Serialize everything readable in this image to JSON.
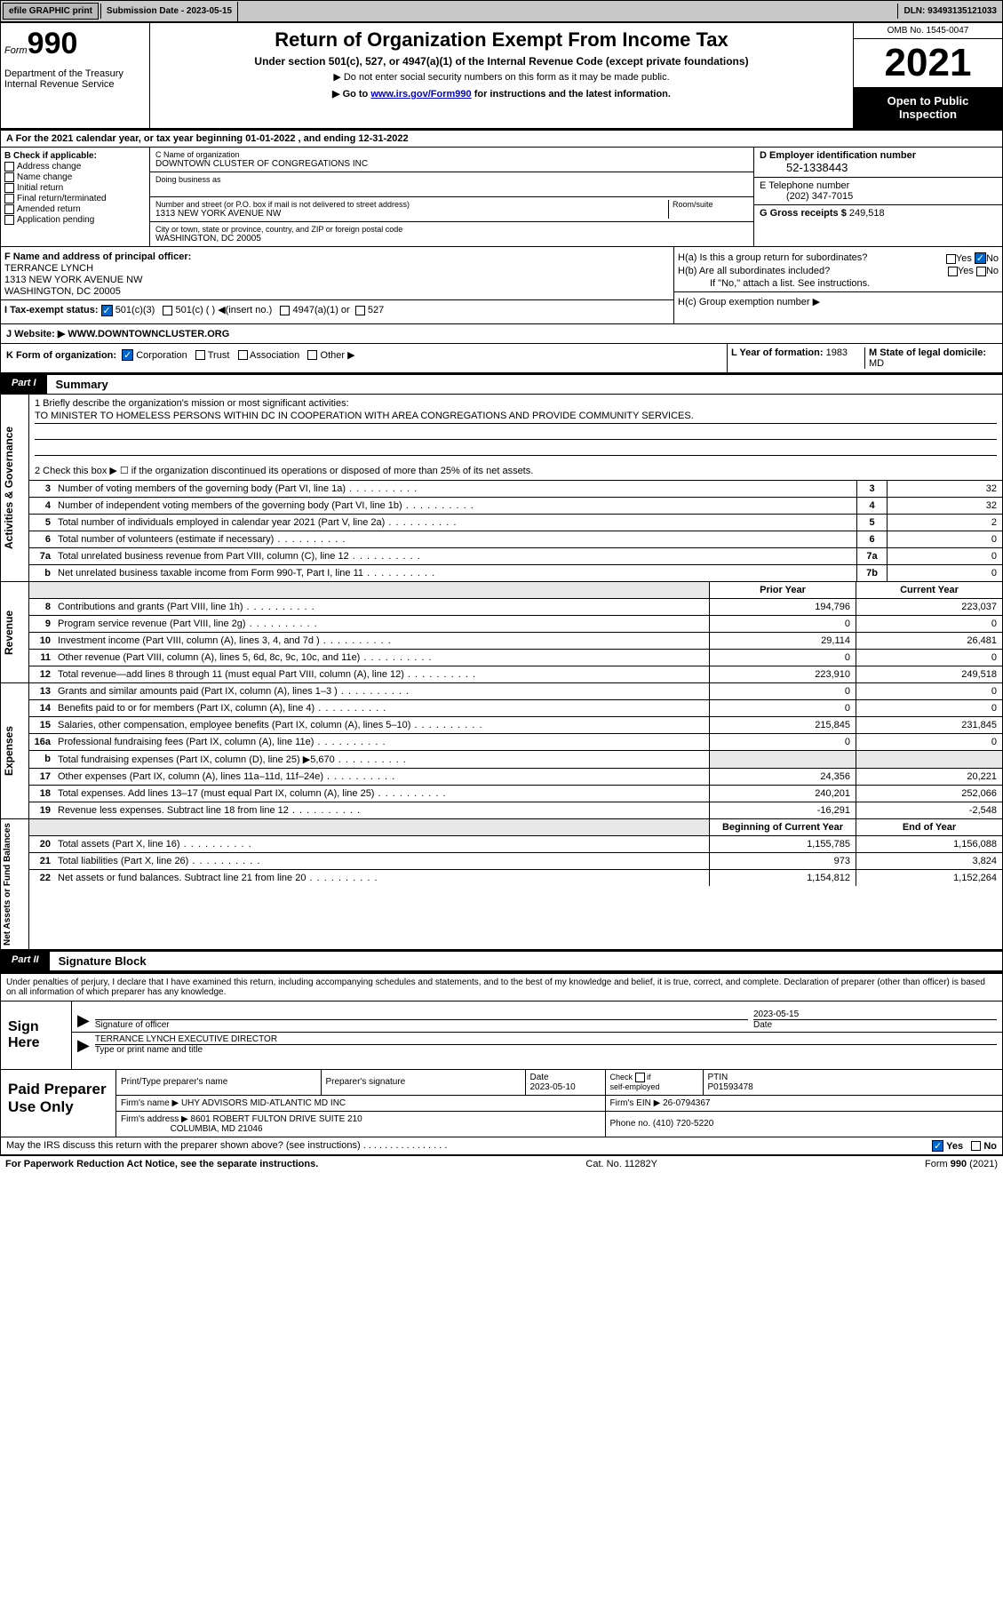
{
  "topbar": {
    "efile": "efile GRAPHIC print",
    "submission": "Submission Date - 2023-05-15",
    "dln": "DLN: 93493135121033"
  },
  "header": {
    "form_word": "Form",
    "form_num": "990",
    "dept": "Department of the Treasury",
    "irs": "Internal Revenue Service",
    "title": "Return of Organization Exempt From Income Tax",
    "sub": "Under section 501(c), 527, or 4947(a)(1) of the Internal Revenue Code (except private foundations)",
    "note1": "▶ Do not enter social security numbers on this form as it may be made public.",
    "note2_a": "▶ Go to ",
    "note2_link": "www.irs.gov/Form990",
    "note2_b": " for instructions and the latest information.",
    "omb": "OMB No. 1545-0047",
    "year": "2021",
    "open": "Open to Public Inspection"
  },
  "period": "A For the 2021 calendar year, or tax year beginning 01-01-2022   , and ending 12-31-2022",
  "colB": {
    "head": "B Check if applicable:",
    "c1": "Address change",
    "c2": "Name change",
    "c3": "Initial return",
    "c4": "Final return/terminated",
    "c5": "Amended return",
    "c6": "Application pending"
  },
  "colC": {
    "name_lbl": "C Name of organization",
    "name": "DOWNTOWN CLUSTER OF CONGREGATIONS INC",
    "dba_lbl": "Doing business as",
    "addr_lbl": "Number and street (or P.O. box if mail is not delivered to street address)",
    "room_lbl": "Room/suite",
    "addr": "1313 NEW YORK AVENUE NW",
    "city_lbl": "City or town, state or province, country, and ZIP or foreign postal code",
    "city": "WASHINGTON, DC  20005"
  },
  "colDE": {
    "d_lbl": "D Employer identification number",
    "ein": "52-1338443",
    "e_lbl": "E Telephone number",
    "phone": "(202) 347-7015",
    "g_lbl": "G Gross receipts $",
    "g_val": "249,518"
  },
  "rowF": {
    "f_lbl": "F Name and address of principal officer:",
    "f_name": "TERRANCE LYNCH",
    "f_addr1": "1313 NEW YORK AVENUE NW",
    "f_addr2": "WASHINGTON, DC  20005"
  },
  "rowH": {
    "ha": "H(a)  Is this a group return for subordinates?",
    "hb": "H(b)  Are all subordinates included?",
    "hb2": "If \"No,\" attach a list. See instructions.",
    "hc": "H(c)  Group exemption number ▶",
    "yes": "Yes",
    "no": "No"
  },
  "rowI": {
    "lbl": "I   Tax-exempt status:",
    "c1": "501(c)(3)",
    "c2": "501(c) (  ) ◀(insert no.)",
    "c3": "4947(a)(1) or",
    "c4": "527"
  },
  "rowJ": {
    "lbl": "J   Website: ▶",
    "val": "WWW.DOWNTOWNCLUSTER.ORG"
  },
  "rowK": {
    "lbl": "K Form of organization:",
    "c1": "Corporation",
    "c2": "Trust",
    "c3": "Association",
    "c4": "Other ▶"
  },
  "rowL": {
    "lbl": "L Year of formation:",
    "val": "1983"
  },
  "rowM": {
    "lbl": "M State of legal domicile:",
    "val": "MD"
  },
  "partI": {
    "lbl": "Part I",
    "title": "Summary"
  },
  "mission": {
    "q": "1   Briefly describe the organization's mission or most significant activities:",
    "text": "TO MINISTER TO HOMELESS PERSONS WITHIN DC IN COOPERATION WITH AREA CONGREGATIONS AND PROVIDE COMMUNITY SERVICES.",
    "q2": "2   Check this box ▶ ☐  if the organization discontinued its operations or disposed of more than 25% of its net assets."
  },
  "gov_rows": [
    {
      "n": "3",
      "d": "Number of voting members of the governing body (Part VI, line 1a)",
      "box": "3",
      "v": "32"
    },
    {
      "n": "4",
      "d": "Number of independent voting members of the governing body (Part VI, line 1b)",
      "box": "4",
      "v": "32"
    },
    {
      "n": "5",
      "d": "Total number of individuals employed in calendar year 2021 (Part V, line 2a)",
      "box": "5",
      "v": "2"
    },
    {
      "n": "6",
      "d": "Total number of volunteers (estimate if necessary)",
      "box": "6",
      "v": "0"
    },
    {
      "n": "7a",
      "d": "Total unrelated business revenue from Part VIII, column (C), line 12",
      "box": "7a",
      "v": "0"
    },
    {
      "n": "b",
      "d": "Net unrelated business taxable income from Form 990-T, Part I, line 11",
      "box": "7b",
      "v": "0"
    }
  ],
  "two_col": {
    "h1": "Prior Year",
    "h2": "Current Year"
  },
  "rev_rows": [
    {
      "n": "8",
      "d": "Contributions and grants (Part VIII, line 1h)",
      "v1": "194,796",
      "v2": "223,037"
    },
    {
      "n": "9",
      "d": "Program service revenue (Part VIII, line 2g)",
      "v1": "0",
      "v2": "0"
    },
    {
      "n": "10",
      "d": "Investment income (Part VIII, column (A), lines 3, 4, and 7d )",
      "v1": "29,114",
      "v2": "26,481"
    },
    {
      "n": "11",
      "d": "Other revenue (Part VIII, column (A), lines 5, 6d, 8c, 9c, 10c, and 11e)",
      "v1": "0",
      "v2": "0"
    },
    {
      "n": "12",
      "d": "Total revenue—add lines 8 through 11 (must equal Part VIII, column (A), line 12)",
      "v1": "223,910",
      "v2": "249,518"
    }
  ],
  "exp_rows": [
    {
      "n": "13",
      "d": "Grants and similar amounts paid (Part IX, column (A), lines 1–3 )",
      "v1": "0",
      "v2": "0"
    },
    {
      "n": "14",
      "d": "Benefits paid to or for members (Part IX, column (A), line 4)",
      "v1": "0",
      "v2": "0"
    },
    {
      "n": "15",
      "d": "Salaries, other compensation, employee benefits (Part IX, column (A), lines 5–10)",
      "v1": "215,845",
      "v2": "231,845"
    },
    {
      "n": "16a",
      "d": "Professional fundraising fees (Part IX, column (A), line 11e)",
      "v1": "0",
      "v2": "0"
    },
    {
      "n": "b",
      "d": "Total fundraising expenses (Part IX, column (D), line 25) ▶5,670",
      "v1": "",
      "v2": "",
      "gray": true
    },
    {
      "n": "17",
      "d": "Other expenses (Part IX, column (A), lines 11a–11d, 11f–24e)",
      "v1": "24,356",
      "v2": "20,221"
    },
    {
      "n": "18",
      "d": "Total expenses. Add lines 13–17 (must equal Part IX, column (A), line 25)",
      "v1": "240,201",
      "v2": "252,066"
    },
    {
      "n": "19",
      "d": "Revenue less expenses. Subtract line 18 from line 12",
      "v1": "-16,291",
      "v2": "-2,548"
    }
  ],
  "na_hdr": {
    "h1": "Beginning of Current Year",
    "h2": "End of Year"
  },
  "na_rows": [
    {
      "n": "20",
      "d": "Total assets (Part X, line 16)",
      "v1": "1,155,785",
      "v2": "1,156,088"
    },
    {
      "n": "21",
      "d": "Total liabilities (Part X, line 26)",
      "v1": "973",
      "v2": "3,824"
    },
    {
      "n": "22",
      "d": "Net assets or fund balances. Subtract line 21 from line 20",
      "v1": "1,154,812",
      "v2": "1,152,264"
    }
  ],
  "vtabs": {
    "gov": "Activities & Governance",
    "rev": "Revenue",
    "exp": "Expenses",
    "na": "Net Assets or Fund Balances"
  },
  "partII": {
    "lbl": "Part II",
    "title": "Signature Block"
  },
  "decl": "Under penalties of perjury, I declare that I have examined this return, including accompanying schedules and statements, and to the best of my knowledge and belief, it is true, correct, and complete. Declaration of preparer (other than officer) is based on all information of which preparer has any knowledge.",
  "sign": {
    "lbl": "Sign Here",
    "sig_lbl": "Signature of officer",
    "date_lbl": "Date",
    "date": "2023-05-15",
    "name": "TERRANCE LYNCH  EXECUTIVE DIRECTOR",
    "name_lbl": "Type or print name and title"
  },
  "prep": {
    "lbl": "Paid Preparer Use Only",
    "h1": "Print/Type preparer's name",
    "h2": "Preparer's signature",
    "h3": "Date",
    "date": "2023-05-10",
    "h4": "Check check if self-employed",
    "h5": "PTIN",
    "ptin": "P01593478",
    "firm_lbl": "Firm's name    ▶",
    "firm": "UHY ADVISORS MID-ATLANTIC MD INC",
    "ein_lbl": "Firm's EIN ▶",
    "ein": "26-0794367",
    "addr_lbl": "Firm's address ▶",
    "addr1": "8601 ROBERT FULTON DRIVE SUITE 210",
    "addr2": "COLUMBIA, MD  21046",
    "ph_lbl": "Phone no.",
    "ph": "(410) 720-5220"
  },
  "may_irs": "May the IRS discuss this return with the preparer shown above? (see instructions)",
  "footer": {
    "l": "For Paperwork Reduction Act Notice, see the separate instructions.",
    "m": "Cat. No. 11282Y",
    "r": "Form 990 (2021)"
  }
}
